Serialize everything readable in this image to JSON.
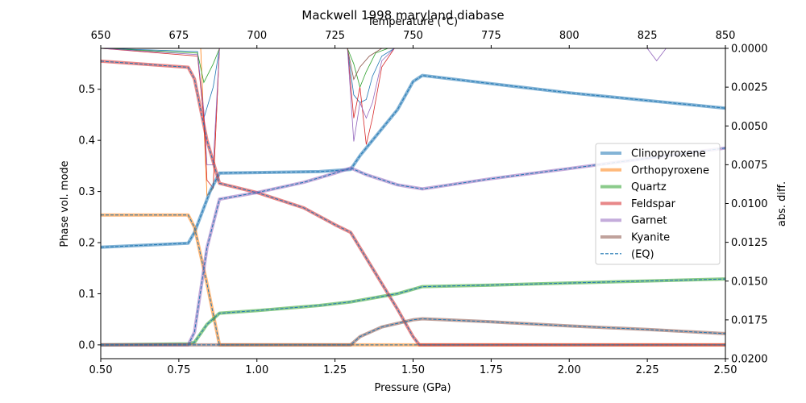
{
  "chart_data": {
    "type": "line",
    "title": "Mackwell 1998 maryland diabase",
    "xlabel": "Pressure (GPa)",
    "ylabel": "Phase vol. mode",
    "x2label": "Temperature (°C)",
    "y2label": "abs. diff.",
    "xlim": [
      0.5,
      2.5
    ],
    "ylim": [
      -0.027,
      0.58
    ],
    "x2lim": [
      650,
      850
    ],
    "y2lim": [
      0.02,
      0.0
    ],
    "xticks": [
      "0.50",
      "0.75",
      "1.00",
      "1.25",
      "1.50",
      "1.75",
      "2.00",
      "2.25",
      "2.50"
    ],
    "yticks": [
      "0.0",
      "0.1",
      "0.2",
      "0.3",
      "0.4",
      "0.5"
    ],
    "x2ticks": [
      "650",
      "675",
      "700",
      "725",
      "750",
      "775",
      "800",
      "825",
      "850"
    ],
    "y2ticks": [
      "0.0000",
      "0.0025",
      "0.0050",
      "0.0075",
      "0.0100",
      "0.0125",
      "0.0150",
      "0.0175",
      "0.0200"
    ],
    "legend_position": "center-right",
    "series": [
      {
        "name": "Clinopyroxene",
        "color": "#1f77b4",
        "points": [
          [
            0.5,
            0.191
          ],
          [
            0.78,
            0.199
          ],
          [
            0.8,
            0.22
          ],
          [
            0.85,
            0.3
          ],
          [
            0.88,
            0.336
          ],
          [
            1.0,
            0.337
          ],
          [
            1.2,
            0.339
          ],
          [
            1.3,
            0.343
          ],
          [
            1.33,
            0.37
          ],
          [
            1.45,
            0.46
          ],
          [
            1.5,
            0.515
          ],
          [
            1.53,
            0.527
          ],
          [
            1.75,
            0.511
          ],
          [
            2.0,
            0.493
          ],
          [
            2.25,
            0.478
          ],
          [
            2.5,
            0.463
          ]
        ]
      },
      {
        "name": "Orthopyroxene",
        "color": "#ff7f0e",
        "points": [
          [
            0.5,
            0.254
          ],
          [
            0.78,
            0.254
          ],
          [
            0.8,
            0.23
          ],
          [
            0.84,
            0.12
          ],
          [
            0.88,
            0.0
          ],
          [
            2.5,
            0.0
          ]
        ]
      },
      {
        "name": "Quartz",
        "color": "#2ca02c",
        "points": [
          [
            0.5,
            0.0
          ],
          [
            0.78,
            0.002
          ],
          [
            0.8,
            0.005
          ],
          [
            0.84,
            0.04
          ],
          [
            0.88,
            0.062
          ],
          [
            1.0,
            0.067
          ],
          [
            1.2,
            0.077
          ],
          [
            1.3,
            0.084
          ],
          [
            1.45,
            0.1
          ],
          [
            1.53,
            0.114
          ],
          [
            1.75,
            0.117
          ],
          [
            2.0,
            0.121
          ],
          [
            2.25,
            0.125
          ],
          [
            2.5,
            0.129
          ]
        ]
      },
      {
        "name": "Feldspar",
        "color": "#d62728",
        "points": [
          [
            0.5,
            0.555
          ],
          [
            0.78,
            0.543
          ],
          [
            0.8,
            0.52
          ],
          [
            0.84,
            0.4
          ],
          [
            0.88,
            0.316
          ],
          [
            1.0,
            0.298
          ],
          [
            1.15,
            0.268
          ],
          [
            1.25,
            0.235
          ],
          [
            1.3,
            0.22
          ],
          [
            1.34,
            0.18
          ],
          [
            1.4,
            0.12
          ],
          [
            1.45,
            0.07
          ],
          [
            1.5,
            0.016
          ],
          [
            1.52,
            0.0
          ],
          [
            2.5,
            0.0
          ]
        ]
      },
      {
        "name": "Garnet",
        "color": "#9467bd",
        "points": [
          [
            0.5,
            0.0
          ],
          [
            0.78,
            0.0
          ],
          [
            0.8,
            0.025
          ],
          [
            0.84,
            0.19
          ],
          [
            0.88,
            0.285
          ],
          [
            1.0,
            0.298
          ],
          [
            1.15,
            0.318
          ],
          [
            1.25,
            0.336
          ],
          [
            1.3,
            0.346
          ],
          [
            1.35,
            0.333
          ],
          [
            1.45,
            0.313
          ],
          [
            1.53,
            0.305
          ],
          [
            1.75,
            0.325
          ],
          [
            2.0,
            0.345
          ],
          [
            2.25,
            0.365
          ],
          [
            2.5,
            0.385
          ]
        ]
      },
      {
        "name": "Kyanite",
        "color": "#8c564b",
        "points": [
          [
            0.5,
            0.0
          ],
          [
            1.3,
            0.0
          ],
          [
            1.33,
            0.016
          ],
          [
            1.4,
            0.035
          ],
          [
            1.5,
            0.049
          ],
          [
            1.53,
            0.051
          ],
          [
            1.75,
            0.045
          ],
          [
            2.0,
            0.037
          ],
          [
            2.25,
            0.03
          ],
          [
            2.5,
            0.022
          ]
        ]
      },
      {
        "name": "(EQ)",
        "color": "#1f77b4",
        "style": "dashed"
      }
    ],
    "diff_series": [
      {
        "color": "#1f77b4",
        "points": [
          [
            0.5,
            0.0
          ],
          [
            0.81,
            0.0002
          ],
          [
            0.83,
            0.0045
          ],
          [
            0.86,
            0.0025
          ],
          [
            0.88,
            0.0
          ],
          [
            1.29,
            0.0
          ],
          [
            1.31,
            0.003
          ],
          [
            1.33,
            0.0035
          ],
          [
            1.35,
            0.0033
          ],
          [
            1.37,
            0.0018
          ],
          [
            1.4,
            0.0005
          ],
          [
            1.44,
            0.0
          ],
          [
            2.5,
            0.0
          ]
        ]
      },
      {
        "name_ref": "Orthopyroxene",
        "color": "#ff7f0e",
        "points": [
          [
            0.5,
            0.0
          ],
          [
            0.82,
            0.0
          ],
          [
            0.84,
            0.0095
          ],
          [
            0.86,
            0.009
          ],
          [
            0.88,
            0.0
          ],
          [
            2.5,
            0.0
          ]
        ]
      },
      {
        "name_ref": "Quartz",
        "color": "#2ca02c",
        "points": [
          [
            0.5,
            0.0
          ],
          [
            0.81,
            0.0003
          ],
          [
            0.83,
            0.0022
          ],
          [
            0.86,
            0.001
          ],
          [
            0.88,
            0.0
          ],
          [
            1.29,
            0.0
          ],
          [
            1.31,
            0.001
          ],
          [
            1.33,
            0.0025
          ],
          [
            1.35,
            0.0015
          ],
          [
            1.38,
            0.0003
          ],
          [
            1.42,
            0.0
          ],
          [
            2.5,
            0.0
          ]
        ]
      },
      {
        "name_ref": "Feldspar",
        "color": "#d62728",
        "points": [
          [
            0.5,
            0.0
          ],
          [
            0.81,
            0.0005
          ],
          [
            0.83,
            0.0045
          ],
          [
            0.84,
            0.0085
          ],
          [
            0.86,
            0.009
          ],
          [
            0.88,
            0.0
          ],
          [
            1.29,
            0.0
          ],
          [
            1.31,
            0.0045
          ],
          [
            1.33,
            0.0025
          ],
          [
            1.35,
            0.0062
          ],
          [
            1.37,
            0.0045
          ],
          [
            1.4,
            0.0012
          ],
          [
            1.44,
            0.0
          ],
          [
            2.5,
            0.0
          ]
        ]
      },
      {
        "name_ref": "Garnet",
        "color": "#9467bd",
        "points": [
          [
            0.5,
            0.0
          ],
          [
            0.81,
            0.0004
          ],
          [
            0.83,
            0.004
          ],
          [
            0.84,
            0.0075
          ],
          [
            0.86,
            0.0075
          ],
          [
            0.88,
            0.0
          ],
          [
            1.29,
            0.0
          ],
          [
            1.31,
            0.006
          ],
          [
            1.33,
            0.0035
          ],
          [
            1.35,
            0.0045
          ],
          [
            1.37,
            0.0035
          ],
          [
            1.4,
            0.0008
          ],
          [
            1.44,
            0.0
          ],
          [
            2.25,
            0.0
          ],
          [
            2.28,
            0.0008
          ],
          [
            2.31,
            0.0
          ],
          [
            2.5,
            0.0
          ]
        ]
      },
      {
        "name_ref": "Kyanite",
        "color": "#8c564b",
        "points": [
          [
            0.5,
            0.0
          ],
          [
            1.29,
            0.0
          ],
          [
            1.31,
            0.002
          ],
          [
            1.33,
            0.0012
          ],
          [
            1.36,
            0.0005
          ],
          [
            1.4,
            0.0
          ],
          [
            2.5,
            0.0
          ]
        ]
      }
    ]
  }
}
